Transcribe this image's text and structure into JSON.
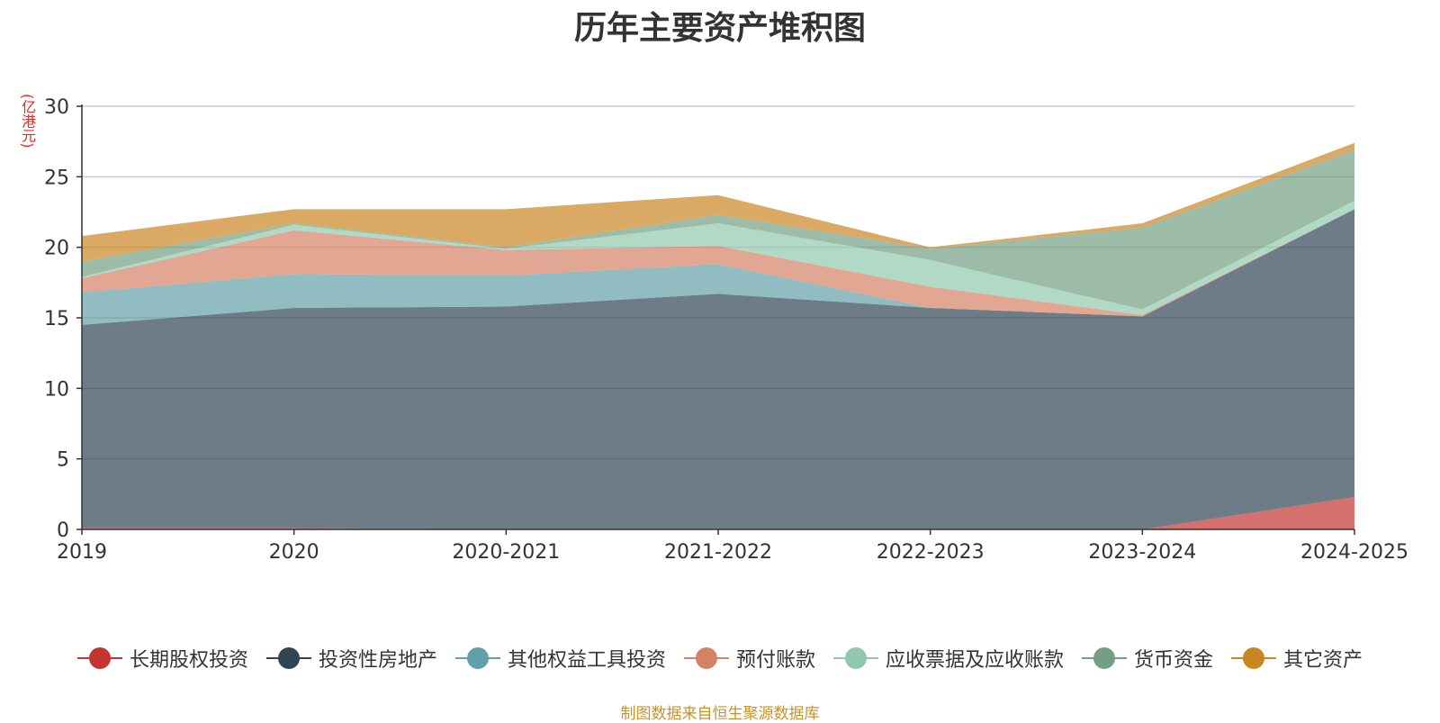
{
  "chart_data": {
    "type": "area",
    "stacked": true,
    "title": "历年主要资产堆积图",
    "unit_label": "(亿港元)",
    "source_note": "制图数据来自恒生聚源数据库",
    "categories": [
      "2019",
      "2020",
      "2020-2021",
      "2021-2022",
      "2022-2023",
      "2023-2024",
      "2024-2025"
    ],
    "ylim": [
      0,
      30
    ],
    "yticks": [
      0,
      5,
      10,
      15,
      20,
      25,
      30
    ],
    "grid": true,
    "legend_position": "bottom",
    "series": [
      {
        "name": "长期股权投资",
        "color": "#c23531",
        "values": [
          0.1,
          0.1,
          0.0,
          0.0,
          0.0,
          0.0,
          2.3
        ]
      },
      {
        "name": "投资性房地产",
        "color": "#2f4554",
        "values": [
          14.4,
          15.6,
          15.8,
          16.7,
          15.7,
          15.1,
          20.4
        ]
      },
      {
        "name": "其他权益工具投资",
        "color": "#61a0a8",
        "values": [
          2.3,
          2.4,
          2.2,
          2.1,
          0.0,
          0.0,
          0.0
        ]
      },
      {
        "name": "预付账款",
        "color": "#d48265",
        "values": [
          1.0,
          3.1,
          1.8,
          1.3,
          1.5,
          0.1,
          0.0
        ]
      },
      {
        "name": "应收票据及应收账款",
        "color": "#91c7ae",
        "values": [
          0.1,
          0.4,
          0.1,
          1.6,
          1.9,
          0.4,
          0.6
        ]
      },
      {
        "name": "货币资金",
        "color": "#749f83",
        "values": [
          1.1,
          0.1,
          0.1,
          0.6,
          0.8,
          5.8,
          3.6
        ]
      },
      {
        "name": "其它资产",
        "color": "#ca8622",
        "values": [
          1.8,
          1.0,
          2.7,
          1.4,
          0.1,
          0.3,
          0.5
        ]
      }
    ]
  }
}
